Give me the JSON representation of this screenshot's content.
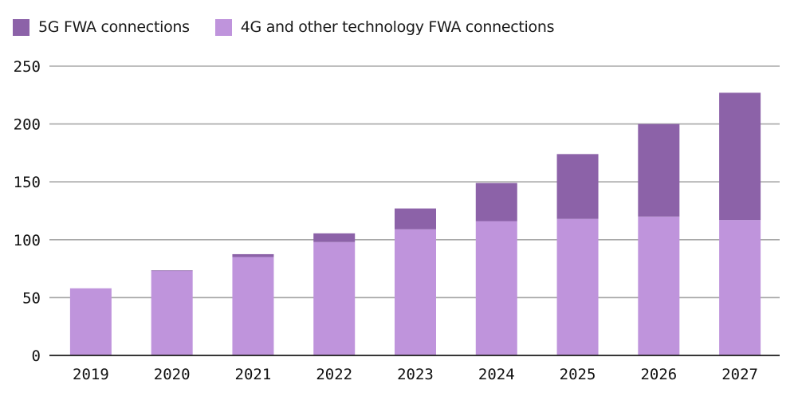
{
  "chart_data": {
    "type": "bar",
    "stacked": true,
    "title": "",
    "xlabel": "",
    "ylabel": "",
    "categories": [
      "2019",
      "2020",
      "2021",
      "2022",
      "2023",
      "2024",
      "2025",
      "2026",
      "2027"
    ],
    "series": [
      {
        "name": "4G and other technology FWA connections",
        "color": "#bf94dc",
        "values": [
          58,
          73,
          85,
          98,
          109,
          116,
          118,
          120,
          117
        ]
      },
      {
        "name": "5G FWA connections",
        "color": "#8c62a8",
        "values": [
          0,
          0.5,
          2.5,
          7.5,
          18,
          33,
          56,
          80,
          110
        ]
      }
    ],
    "ylim": [
      0,
      250
    ],
    "yticks": [
      0,
      50,
      100,
      150,
      200,
      250
    ],
    "grid": true,
    "legend_position": "top-left",
    "legend_order": [
      "5G FWA connections",
      "4G and other technology FWA connections"
    ]
  }
}
